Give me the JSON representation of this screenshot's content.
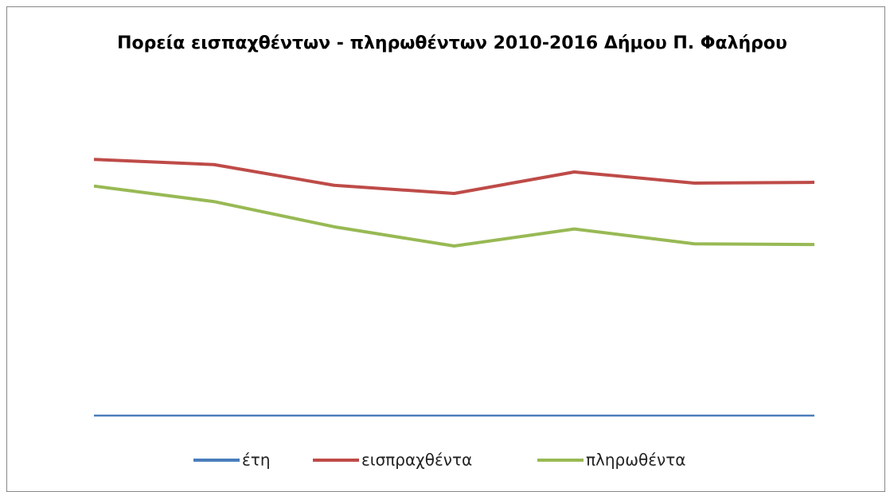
{
  "chart_data": {
    "type": "line",
    "title": "Πορεία εισπαχθέντων - πληρωθέντων 2010-2016 Δήμου Π. Φαλήρου",
    "categories": [
      null,
      null,
      null,
      null,
      null,
      null,
      null
    ],
    "series": [
      {
        "name": "έτη",
        "color": "#4a7ebb",
        "values": [
          2010,
          2011,
          2012,
          2013,
          2014,
          2015,
          2016
        ]
      },
      {
        "name": "εισπραχθέντα",
        "color": "#be4b48",
        "values": [
          34600000,
          33900000,
          31100000,
          30000000,
          32900000,
          31400000,
          31500000
        ]
      },
      {
        "name": "πληρωθέντα",
        "color": "#98b954",
        "values": [
          31000000,
          28900000,
          25500000,
          22900000,
          25200000,
          23200000,
          23100000
        ]
      }
    ],
    "ylim": [
      0,
      40000000
    ],
    "legend": "bottom"
  }
}
